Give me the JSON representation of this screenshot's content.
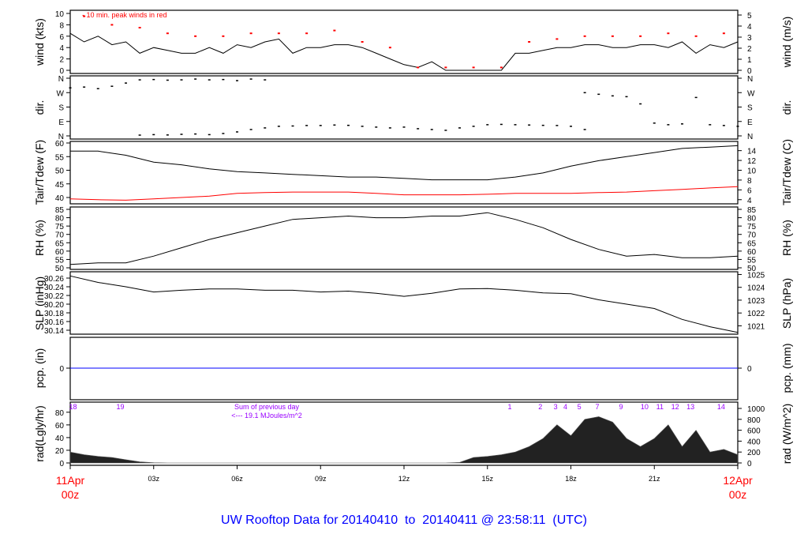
{
  "chart_data": {
    "type": "line",
    "title": "UW Rooftop Data for 20140410  to  20140411 @ 23:58:11  (UTC)",
    "x_ticks": [
      "03z",
      "06z",
      "09z",
      "12z",
      "15z",
      "18z",
      "21z"
    ],
    "x_start": [
      "11Apr",
      "00z"
    ],
    "x_end": [
      "12Apr",
      "00z"
    ],
    "colors": {
      "main": "#000000",
      "peak": "#ff0000",
      "dew": "#ff0000",
      "pcp": "#0000ff",
      "title": "#0000ff",
      "rad_labels": "#9900ff",
      "date": "#ff0000"
    },
    "time_step_hours": 0.5,
    "panels": {
      "wind": {
        "ylabel": "wind (kts)",
        "ylabel_right": "wind (m/s)",
        "ylim": [
          0,
          10
        ],
        "yticks": [
          "0",
          "2",
          "4",
          "6",
          "8",
          "10"
        ],
        "yticks_right": [
          "0",
          "1",
          "2",
          "3",
          "4",
          "5"
        ],
        "annotation": "10 min. peak winds in red",
        "values": [
          6.5,
          5,
          6,
          4.5,
          5,
          3,
          4,
          3.5,
          3,
          3,
          4,
          3,
          4.5,
          4,
          5,
          5.5,
          3,
          4,
          4,
          4.5,
          4.5,
          4,
          3,
          2,
          1,
          0.5,
          1.5,
          0,
          0,
          0,
          0,
          0,
          3,
          3,
          3.5,
          4,
          4,
          4.5,
          4.5,
          4,
          4,
          4.5,
          4.5,
          4,
          5,
          3,
          4.5,
          4,
          5
        ],
        "peak_hourly": [
          9.5,
          8,
          7.5,
          6.5,
          6,
          6,
          6.5,
          6.5,
          6.5,
          7,
          5,
          4,
          0.5,
          0.5,
          0.5,
          0.5,
          5,
          5.5,
          6,
          6,
          6,
          6.5,
          6,
          6.5
        ]
      },
      "dir": {
        "ylabel": "dir.",
        "ylim": [
          0,
          360
        ],
        "yticks": [
          "N",
          "E",
          "S",
          "W",
          "N"
        ],
        "points": [
          [
            0,
            300
          ],
          [
            0.5,
            305
          ],
          [
            1,
            295
          ],
          [
            1.5,
            310
          ],
          [
            2,
            330
          ],
          [
            2.5,
            350
          ],
          [
            3,
            352
          ],
          [
            3.5,
            348
          ],
          [
            4,
            350
          ],
          [
            4.5,
            355
          ],
          [
            5,
            350
          ],
          [
            5.5,
            352
          ],
          [
            6,
            345
          ],
          [
            6.5,
            355
          ],
          [
            7,
            350
          ],
          [
            2.5,
            5
          ],
          [
            3,
            8
          ],
          [
            3.5,
            6
          ],
          [
            4,
            10
          ],
          [
            4.5,
            12
          ],
          [
            5,
            8
          ],
          [
            5.5,
            15
          ],
          [
            6,
            25
          ],
          [
            6.5,
            40
          ],
          [
            7,
            50
          ],
          [
            7.5,
            60
          ],
          [
            8,
            62
          ],
          [
            8.5,
            65
          ],
          [
            9,
            65
          ],
          [
            9.5,
            68
          ],
          [
            10,
            66
          ],
          [
            10.5,
            60
          ],
          [
            11,
            55
          ],
          [
            11.5,
            50
          ],
          [
            12,
            55
          ],
          [
            12.5,
            45
          ],
          [
            13,
            40
          ],
          [
            13.5,
            35
          ],
          [
            14,
            50
          ],
          [
            14.5,
            60
          ],
          [
            15,
            70
          ],
          [
            15.5,
            72
          ],
          [
            16,
            70
          ],
          [
            16.5,
            68
          ],
          [
            17,
            66
          ],
          [
            17.5,
            65
          ],
          [
            18,
            60
          ],
          [
            18.5,
            40
          ],
          [
            18.5,
            270
          ],
          [
            19,
            260
          ],
          [
            19.5,
            250
          ],
          [
            20,
            245
          ],
          [
            20.5,
            200
          ],
          [
            21,
            80
          ],
          [
            21.5,
            70
          ],
          [
            22,
            75
          ],
          [
            22.5,
            240
          ],
          [
            23,
            70
          ],
          [
            23.5,
            65
          ],
          [
            24,
            60
          ]
        ]
      },
      "temp": {
        "ylabel": "Tair/Tdew (F)",
        "ylabel_right": "Tair/Tdew (C)",
        "ylim": [
          40,
          60
        ],
        "yticks": [
          "40",
          "45",
          "50",
          "55",
          "60"
        ],
        "yticks_right": [
          "4",
          "6",
          "8",
          "10",
          "12",
          "14"
        ],
        "tair_hourly": [
          57,
          57,
          55.5,
          53,
          52,
          50.5,
          49.5,
          49,
          48.5,
          48,
          47.5,
          47.5,
          47,
          46.5,
          46.5,
          46.5,
          47.5,
          49,
          51.5,
          53.5,
          55,
          56.5,
          58,
          58.5,
          59
        ],
        "tdew_hourly": [
          39.5,
          39.2,
          39,
          39.5,
          40,
          40.5,
          41.5,
          41.8,
          42,
          42,
          42,
          41.5,
          41,
          41,
          41,
          41.2,
          41.5,
          41.5,
          41.5,
          41.8,
          42,
          42.5,
          43,
          43.5,
          44
        ]
      },
      "rh": {
        "ylabel": "RH (%)",
        "ylim": [
          50,
          85
        ],
        "yticks": [
          "50",
          "55",
          "60",
          "65",
          "70",
          "75",
          "80",
          "85"
        ],
        "hourly": [
          52,
          53,
          53,
          57,
          62,
          67,
          71,
          75,
          79,
          80,
          81,
          80,
          80,
          81,
          81,
          83,
          79,
          74,
          67,
          61,
          57,
          58,
          56,
          56,
          57
        ]
      },
      "slp": {
        "ylabel": "SLP (inHg)",
        "ylabel_right": "SLP (hPa)",
        "ylim": [
          30.13,
          30.27
        ],
        "yticks": [
          "30.14",
          "30.16",
          "30.18",
          "30.20",
          "30.22",
          "30.24",
          "30.26"
        ],
        "yticks_right": [
          "1021",
          "1022",
          "1023",
          "1024",
          "1025"
        ],
        "hourly": [
          30.265,
          30.25,
          30.24,
          30.228,
          30.232,
          30.235,
          30.235,
          30.232,
          30.232,
          30.228,
          30.23,
          30.225,
          30.218,
          30.225,
          30.235,
          30.236,
          30.232,
          30.226,
          30.224,
          30.21,
          30.2,
          30.19,
          30.165,
          30.148,
          30.135
        ]
      },
      "pcp": {
        "ylabel": "pcp. (in)",
        "ylabel_right": "pcp. (mm)",
        "yticks": [
          "0"
        ],
        "yticks_right": [
          "0"
        ],
        "value": 0
      },
      "rad": {
        "ylabel": "rad(Lgly/hr)",
        "ylabel_right": "rad (W/m^2)",
        "ylim": [
          0,
          1100
        ],
        "yticks": [
          "0",
          "20",
          "40",
          "60",
          "80"
        ],
        "yticks_right": [
          "0",
          "200",
          "400",
          "600",
          "800",
          "1000"
        ],
        "values": [
          200,
          150,
          120,
          100,
          60,
          20,
          5,
          0,
          0,
          0,
          0,
          0,
          0,
          0,
          0,
          0,
          0,
          0,
          0,
          0,
          0,
          0,
          0,
          0,
          0,
          0,
          0,
          0,
          10,
          100,
          120,
          150,
          200,
          300,
          450,
          700,
          500,
          800,
          850,
          750,
          450,
          300,
          450,
          700,
          300,
          600,
          200,
          250,
          150
        ],
        "hour_labels": [
          {
            "t": 0.1,
            "l": "18"
          },
          {
            "t": 1.8,
            "l": "19"
          },
          {
            "t": 15.8,
            "l": "1"
          },
          {
            "t": 16.9,
            "l": "2"
          },
          {
            "t": 17.45,
            "l": "3"
          },
          {
            "t": 17.8,
            "l": "4"
          },
          {
            "t": 18.3,
            "l": "5"
          },
          {
            "t": 18.95,
            "l": "7"
          },
          {
            "t": 19.8,
            "l": "9"
          },
          {
            "t": 20.65,
            "l": "10"
          },
          {
            "t": 21.2,
            "l": "11"
          },
          {
            "t": 21.75,
            "l": "12"
          },
          {
            "t": 22.3,
            "l": "13"
          },
          {
            "t": 23.4,
            "l": "14"
          }
        ],
        "sum_label": "Sum of previous day",
        "sum_value": "<--- 19.1 MJoules/m^2"
      }
    }
  }
}
